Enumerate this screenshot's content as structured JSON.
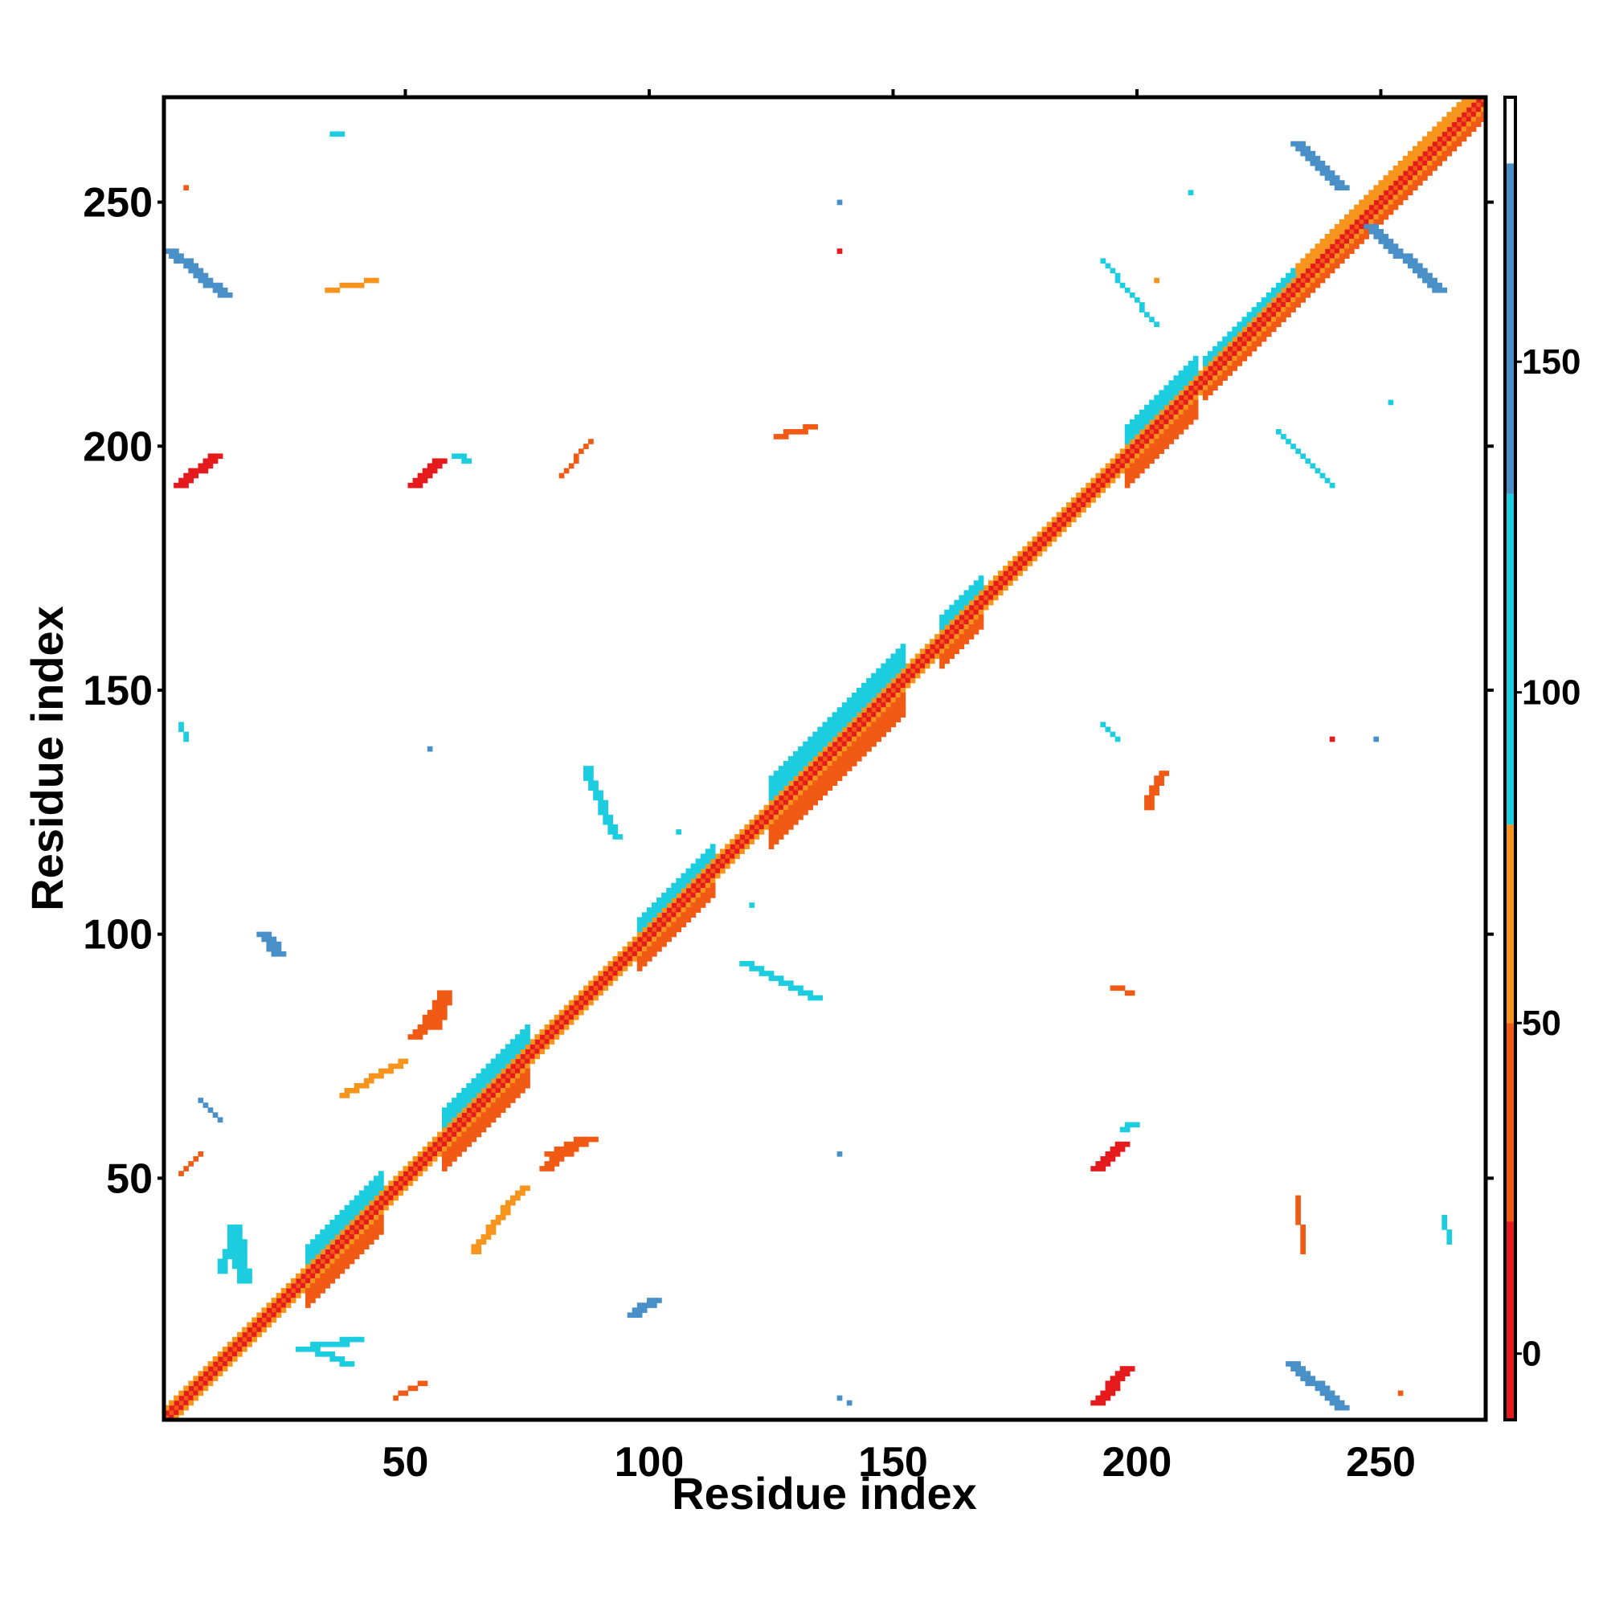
{
  "chart_data": {
    "type": "heatmap",
    "title": "",
    "xlabel": "Residue index",
    "ylabel": "Residue index",
    "xlim": [
      1,
      271
    ],
    "ylim": [
      1,
      271
    ],
    "x_ticks": [
      50,
      100,
      150,
      200,
      250
    ],
    "y_ticks": [
      50,
      100,
      150,
      200,
      250
    ],
    "colorbar": {
      "range": [
        -10,
        190
      ],
      "ticks": [
        0,
        50,
        100,
        150
      ],
      "segments": [
        {
          "from": -10,
          "to": 20,
          "color": "#e41a1c"
        },
        {
          "from": 20,
          "to": 50,
          "color": "#f05a14"
        },
        {
          "from": 50,
          "to": 80,
          "color": "#f7941d"
        },
        {
          "from": 80,
          "to": 130,
          "color": "#1ccde0"
        },
        {
          "from": 130,
          "to": 180,
          "color": "#4a90c8"
        },
        {
          "from": 180,
          "to": 190,
          "color": "#ffffff"
        }
      ]
    },
    "grid": false,
    "legend": "colorbar-right",
    "bands": [
      {
        "kind": "diagonal",
        "start": 1,
        "end": 271,
        "offset": 0,
        "width": 1,
        "value": 40
      },
      {
        "kind": "diagonal",
        "start": 1,
        "end": 271,
        "offset": 1,
        "width": 1,
        "value": 10
      },
      {
        "kind": "diagonal",
        "start": 1,
        "end": 271,
        "offset": -1,
        "width": 1,
        "value": 10
      },
      {
        "kind": "diagonal",
        "start": 1,
        "end": 271,
        "offset": 2,
        "width": 1,
        "value": 60
      },
      {
        "kind": "diagonal",
        "start": 1,
        "end": 271,
        "offset": -2,
        "width": 1,
        "value": 60
      },
      {
        "kind": "diagonal",
        "start": 30,
        "end": 45,
        "offset": 3,
        "width": 4,
        "value": 100
      },
      {
        "kind": "diagonal",
        "start": 30,
        "end": 45,
        "offset": -3,
        "width": 4,
        "value": 40
      },
      {
        "kind": "diagonal",
        "start": 58,
        "end": 75,
        "offset": 3,
        "width": 4,
        "value": 100
      },
      {
        "kind": "diagonal",
        "start": 58,
        "end": 75,
        "offset": -3,
        "width": 4,
        "value": 40
      },
      {
        "kind": "diagonal",
        "start": 98,
        "end": 113,
        "offset": 3,
        "width": 3,
        "value": 100
      },
      {
        "kind": "diagonal",
        "start": 98,
        "end": 113,
        "offset": -3,
        "width": 3,
        "value": 40
      },
      {
        "kind": "diagonal",
        "start": 125,
        "end": 152,
        "offset": 3,
        "width": 5,
        "value": 100
      },
      {
        "kind": "diagonal",
        "start": 125,
        "end": 152,
        "offset": -3,
        "width": 5,
        "value": 40
      },
      {
        "kind": "diagonal",
        "start": 160,
        "end": 168,
        "offset": 3,
        "width": 3,
        "value": 100
      },
      {
        "kind": "diagonal",
        "start": 160,
        "end": 168,
        "offset": -3,
        "width": 3,
        "value": 40
      },
      {
        "kind": "diagonal",
        "start": 198,
        "end": 212,
        "offset": 3,
        "width": 4,
        "value": 100
      },
      {
        "kind": "diagonal",
        "start": 198,
        "end": 212,
        "offset": -3,
        "width": 4,
        "value": 40
      },
      {
        "kind": "diagonal",
        "start": 214,
        "end": 233,
        "offset": 3,
        "width": 2,
        "value": 100
      },
      {
        "kind": "diagonal",
        "start": 214,
        "end": 233,
        "offset": -3,
        "width": 2,
        "value": 40
      },
      {
        "kind": "diagonal",
        "start": 233,
        "end": 271,
        "offset": 3,
        "width": 2,
        "value": 70
      },
      {
        "kind": "diagonal",
        "start": 233,
        "end": 271,
        "offset": -3,
        "width": 2,
        "value": 20
      },
      {
        "kind": "anti",
        "i_start": 233,
        "i_end": 242,
        "j_start": 262,
        "j_end": 253,
        "width": 3,
        "value": 150
      },
      {
        "kind": "anti",
        "i_start": 248,
        "i_end": 262,
        "j_start": 245,
        "j_end": 232,
        "width": 3,
        "value": 150
      },
      {
        "kind": "anti",
        "i_start": 2,
        "i_end": 13,
        "j_start": 240,
        "j_end": 231,
        "width": 3,
        "value": 150
      },
      {
        "kind": "anti",
        "i_start": 232,
        "i_end": 242,
        "j_start": 12,
        "j_end": 3,
        "width": 3,
        "value": 150
      },
      {
        "kind": "line",
        "x1": 4,
        "y1": 192,
        "x2": 11,
        "y2": 198,
        "width": 3,
        "value": 10
      },
      {
        "kind": "line",
        "x1": 192,
        "y1": 4,
        "x2": 198,
        "y2": 11,
        "width": 3,
        "value": 10
      },
      {
        "kind": "line",
        "x1": 52,
        "y1": 192,
        "x2": 57,
        "y2": 197,
        "width": 3,
        "value": 10
      },
      {
        "kind": "line",
        "x1": 192,
        "y1": 52,
        "x2": 197,
        "y2": 57,
        "width": 3,
        "value": 10
      },
      {
        "kind": "line",
        "x1": 79,
        "y1": 52,
        "x2": 86,
        "y2": 58,
        "width": 3,
        "value": 30
      },
      {
        "kind": "line",
        "x1": 52,
        "y1": 79,
        "x2": 58,
        "y2": 86,
        "width": 3,
        "value": 30
      },
      {
        "kind": "line",
        "x1": 37,
        "y1": 67,
        "x2": 49,
        "y2": 74,
        "width": 2,
        "value": 60
      },
      {
        "kind": "line",
        "x1": 64,
        "y1": 35,
        "x2": 74,
        "y2": 48,
        "width": 2,
        "value": 60
      },
      {
        "kind": "line",
        "x1": 15,
        "y1": 40,
        "x2": 17,
        "y2": 29,
        "width": 3,
        "value": 100
      },
      {
        "kind": "line",
        "x1": 29,
        "y1": 15,
        "x2": 40,
        "y2": 17,
        "width": 3,
        "value": 100
      },
      {
        "kind": "line",
        "x1": 87,
        "y1": 134,
        "x2": 93,
        "y2": 120,
        "width": 2,
        "value": 100
      },
      {
        "kind": "line",
        "x1": 119,
        "y1": 94,
        "x2": 134,
        "y2": 87,
        "width": 2,
        "value": 100
      },
      {
        "kind": "line",
        "x1": 21,
        "y1": 100,
        "x2": 24,
        "y2": 96,
        "width": 3,
        "value": 140
      },
      {
        "kind": "line",
        "x1": 97,
        "y1": 22,
        "x2": 101,
        "y2": 25,
        "width": 3,
        "value": 140
      },
      {
        "kind": "line",
        "x1": 56,
        "y1": 81,
        "x2": 58,
        "y2": 88,
        "width": 3,
        "value": 30
      },
      {
        "kind": "line",
        "x1": 80,
        "y1": 55,
        "x2": 88,
        "y2": 58,
        "width": 3,
        "value": 30
      },
      {
        "kind": "line",
        "x1": 60,
        "y1": 198,
        "x2": 62,
        "y2": 197,
        "width": 2,
        "value": 100
      },
      {
        "kind": "line",
        "x1": 197,
        "y1": 60,
        "x2": 199,
        "y2": 61,
        "width": 2,
        "value": 100
      },
      {
        "kind": "line",
        "x1": 30,
        "y1": 15,
        "x2": 38,
        "y2": 12,
        "width": 2,
        "value": 100
      },
      {
        "kind": "line",
        "x1": 12,
        "y1": 31,
        "x2": 15,
        "y2": 38,
        "width": 2,
        "value": 100
      },
      {
        "kind": "line",
        "x1": 35,
        "y1": 264,
        "x2": 37,
        "y2": 264,
        "width": 1,
        "value": 110
      },
      {
        "kind": "line",
        "x1": 34,
        "y1": 232,
        "x2": 44,
        "y2": 234,
        "width": 1,
        "value": 50
      },
      {
        "kind": "line",
        "x1": 126,
        "y1": 202,
        "x2": 133,
        "y2": 204,
        "width": 2,
        "value": 40
      },
      {
        "kind": "line",
        "x1": 202,
        "y1": 126,
        "x2": 205,
        "y2": 133,
        "width": 2,
        "value": 40
      },
      {
        "kind": "line",
        "x1": 229,
        "y1": 203,
        "x2": 240,
        "y2": 192,
        "width": 1,
        "value": 100
      },
      {
        "kind": "line",
        "x1": 193,
        "y1": 238,
        "x2": 204,
        "y2": 225,
        "width": 1,
        "value": 100
      },
      {
        "kind": "line",
        "x1": 233,
        "y1": 46,
        "x2": 234,
        "y2": 35,
        "width": 1,
        "value": 40
      },
      {
        "kind": "line",
        "x1": 263,
        "y1": 42,
        "x2": 264,
        "y2": 37,
        "width": 1,
        "value": 100
      },
      {
        "kind": "line",
        "x1": 48,
        "y1": 5,
        "x2": 54,
        "y2": 8,
        "width": 1,
        "value": 30
      },
      {
        "kind": "line",
        "x1": 4,
        "y1": 51,
        "x2": 8,
        "y2": 55,
        "width": 1,
        "value": 30
      },
      {
        "kind": "line",
        "x1": 4,
        "y1": 143,
        "x2": 5,
        "y2": 140,
        "width": 1,
        "value": 110
      },
      {
        "kind": "line",
        "x1": 193,
        "y1": 143,
        "x2": 196,
        "y2": 140,
        "width": 1,
        "value": 110
      },
      {
        "kind": "line",
        "x1": 82,
        "y1": 194,
        "x2": 88,
        "y2": 201,
        "width": 1,
        "value": 30
      },
      {
        "kind": "line",
        "x1": 8,
        "y1": 66,
        "x2": 12,
        "y2": 62,
        "width": 1,
        "value": 140
      },
      {
        "kind": "line",
        "x1": 195,
        "y1": 89,
        "x2": 199,
        "y2": 88,
        "width": 1,
        "value": 20
      }
    ],
    "points": [
      {
        "x": 139,
        "y": 250,
        "value": 140
      },
      {
        "x": 139,
        "y": 240,
        "value": 10
      },
      {
        "x": 55,
        "y": 138,
        "value": 140
      },
      {
        "x": 139,
        "y": 55,
        "value": 140
      },
      {
        "x": 139,
        "y": 5,
        "value": 140
      },
      {
        "x": 141,
        "y": 4,
        "value": 140
      },
      {
        "x": 240,
        "y": 140,
        "value": 10
      },
      {
        "x": 249,
        "y": 140,
        "value": 140
      },
      {
        "x": 5,
        "y": 253,
        "value": 30
      },
      {
        "x": 254,
        "y": 6,
        "value": 30
      },
      {
        "x": 211,
        "y": 252,
        "value": 110
      },
      {
        "x": 121,
        "y": 106,
        "value": 110
      },
      {
        "x": 106,
        "y": 121,
        "value": 110
      },
      {
        "x": 204,
        "y": 234,
        "value": 60
      },
      {
        "x": 252,
        "y": 209,
        "value": 110
      }
    ]
  }
}
